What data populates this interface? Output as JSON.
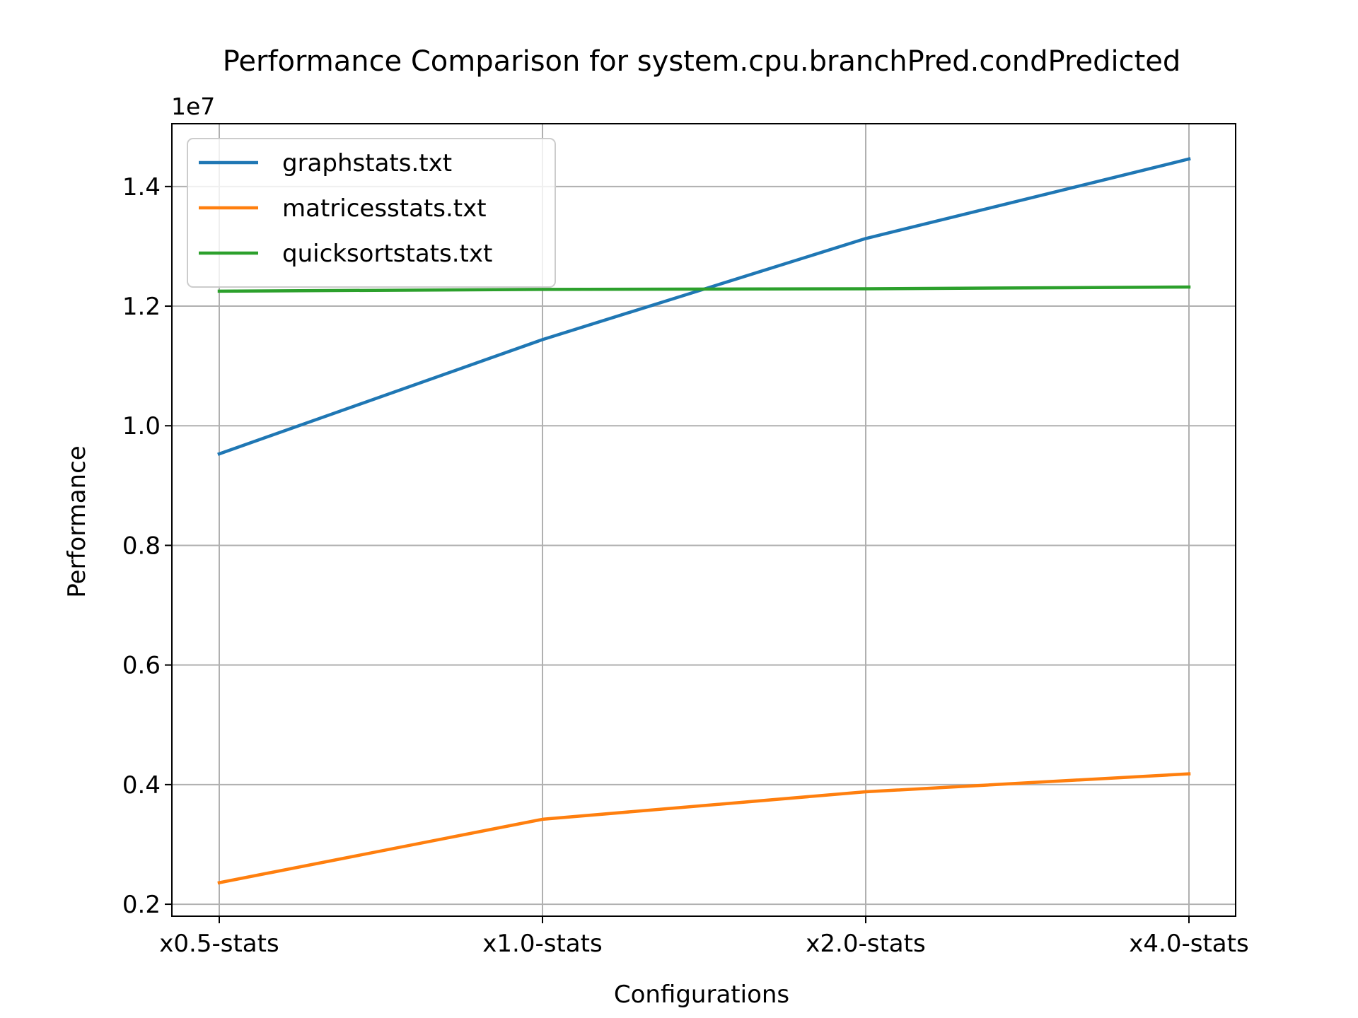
{
  "chart_data": {
    "type": "line",
    "title": "Performance Comparison for system.cpu.branchPred.condPredicted",
    "xlabel": "Configurations",
    "ylabel": "Performance",
    "y_multiplier_label": "1e7",
    "categories": [
      "x0.5-stats",
      "x1.0-stats",
      "x2.0-stats",
      "x4.0-stats"
    ],
    "ylim": [
      0.18,
      1.505
    ],
    "yticks": [
      0.2,
      0.4,
      0.6,
      0.8,
      1.0,
      1.2,
      1.4
    ],
    "ytick_labels": [
      "0.2",
      "0.4",
      "0.6",
      "0.8",
      "1.0",
      "1.2",
      "1.4"
    ],
    "grid": true,
    "legend_position": "upper-left",
    "series": [
      {
        "name": "graphstats.txt",
        "color": "#1f77b4",
        "values": [
          0.953,
          1.144,
          1.313,
          1.446
        ]
      },
      {
        "name": "matricesstats.txt",
        "color": "#ff7f0e",
        "values": [
          0.236,
          0.342,
          0.388,
          0.418
        ]
      },
      {
        "name": "quicksortstats.txt",
        "color": "#2ca02c",
        "values": [
          1.225,
          1.228,
          1.229,
          1.232
        ]
      }
    ]
  }
}
